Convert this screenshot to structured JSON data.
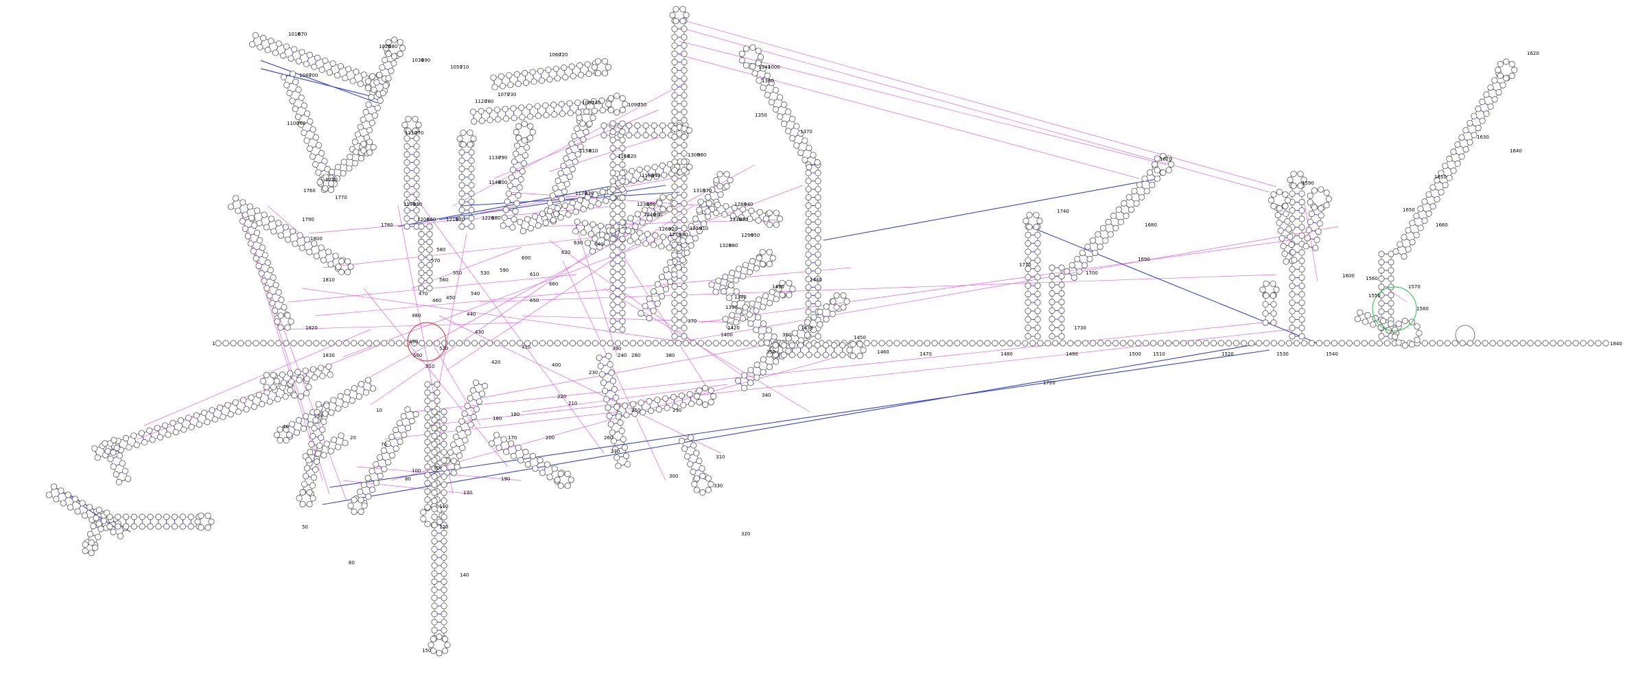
{
  "diagram": {
    "type": "rna-secondary-structure",
    "colors": {
      "backbone": "#666666",
      "base_pair": "#3333cc",
      "tertiary": "#e060e0",
      "long_range": "#3344cc",
      "highlight_red": "#d02020",
      "highlight_green": "#20c040"
    },
    "terminal_labels": {
      "start": "1",
      "end": "1840"
    },
    "position_labels": [
      "1010",
      "1020",
      "1030",
      "1040",
      "1050",
      "1060",
      "1070",
      "1080",
      "1090",
      "1100",
      "1110",
      "1120",
      "1130",
      "1140",
      "1150",
      "1160",
      "1170",
      "1180",
      "1190",
      "1200",
      "1210",
      "1220",
      "1230",
      "1240",
      "1250",
      "1260",
      "1270",
      "1280",
      "1290",
      "1300",
      "1310",
      "1320",
      "1330",
      "1340",
      "1350",
      "1360",
      "1370",
      "1380",
      "1390",
      "1400",
      "1410",
      "1420",
      "1430",
      "1440",
      "1450",
      "1460",
      "1470",
      "1480",
      "1490",
      "1500",
      "1510",
      "1520",
      "1530",
      "1540",
      "1550",
      "1560",
      "1570",
      "1580",
      "1590",
      "1600",
      "1610",
      "1620",
      "1630",
      "1640",
      "1650",
      "1660",
      "1670",
      "1680",
      "1690",
      "1700",
      "1710",
      "1720",
      "1730",
      "1740",
      "1750",
      "1760",
      "1770",
      "1780",
      "1790",
      "1800",
      "1810",
      "1820",
      "1830",
      "10",
      "20",
      "30",
      "40",
      "50",
      "60",
      "70",
      "80",
      "90",
      "100",
      "110",
      "120",
      "130",
      "140",
      "150",
      "160",
      "170",
      "180",
      "190",
      "200",
      "210",
      "220",
      "230",
      "240",
      "250",
      "260",
      "270",
      "280",
      "290",
      "300",
      "310",
      "320",
      "330",
      "340",
      "350",
      "360",
      "370",
      "380",
      "390",
      "400",
      "410",
      "420",
      "430",
      "440",
      "450",
      "460",
      "470",
      "480",
      "490",
      "500",
      "510",
      "520",
      "530",
      "540",
      "550",
      "560",
      "570",
      "580",
      "590",
      "600",
      "610",
      "620",
      "630",
      "640",
      "650",
      "660",
      "670",
      "680",
      "690",
      "700",
      "710",
      "720",
      "730",
      "740",
      "750",
      "760",
      "770",
      "780",
      "790",
      "800",
      "810",
      "820",
      "830",
      "840",
      "850",
      "860",
      "870",
      "880",
      "890",
      "900",
      "910",
      "920",
      "930",
      "940",
      "950",
      "960",
      "970",
      "980",
      "990",
      "1000"
    ]
  }
}
